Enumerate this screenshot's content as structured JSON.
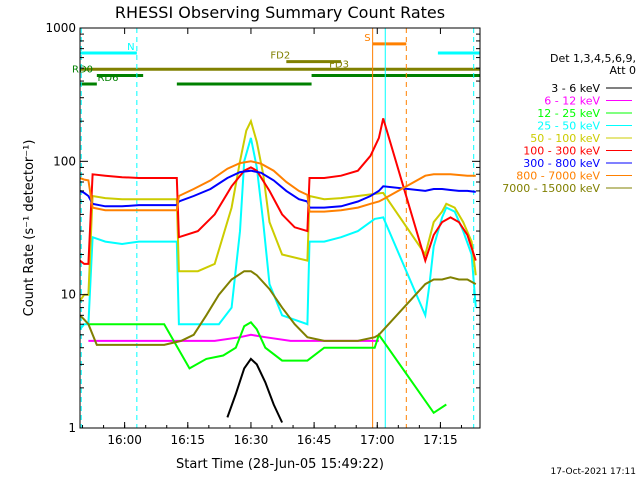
{
  "chart_data": {
    "type": "line",
    "title": "RHESSI Observing Summary Count Rates",
    "xlabel": "Start Time (28-Jun-05 15:49:22)",
    "ylabel": "Count Rate (s⁻¹ detector⁻¹)",
    "x_unit": "minutes after 15:49:22",
    "xlim": [
      0,
      95
    ],
    "ylim": [
      1,
      1000
    ],
    "yscale": "log",
    "x_ticks": [
      {
        "label": "16:00",
        "x": 10.6
      },
      {
        "label": "16:15",
        "x": 25.6
      },
      {
        "label": "16:30",
        "x": 40.6
      },
      {
        "label": "16:45",
        "x": 55.6
      },
      {
        "label": "17:00",
        "x": 70.6
      },
      {
        "label": "17:15",
        "x": 85.6
      }
    ],
    "y_ticks": [
      {
        "label": "1",
        "y": 1
      },
      {
        "label": "10",
        "y": 10
      },
      {
        "label": "100",
        "y": 100
      },
      {
        "label": "1000",
        "y": 1000
      }
    ],
    "legend": {
      "header": [
        "Det 1,3,4,5,6,9,",
        "Att 0"
      ],
      "placement": "right"
    },
    "series": [
      {
        "name": "3 - 6 keV",
        "color": "#000000",
        "points": [
          [
            35,
            1.2
          ],
          [
            37,
            1.8
          ],
          [
            39,
            2.8
          ],
          [
            40.6,
            3.3
          ],
          [
            42,
            3.0
          ],
          [
            44,
            2.2
          ],
          [
            46,
            1.5
          ],
          [
            48,
            1.1
          ]
        ]
      },
      {
        "name": "6 - 12 keV",
        "color": "#ff00ff",
        "points": [
          [
            2,
            4.5
          ],
          [
            10,
            4.5
          ],
          [
            18,
            4.5
          ],
          [
            26,
            4.5
          ],
          [
            32,
            4.5
          ],
          [
            38,
            4.8
          ],
          [
            40.6,
            5
          ],
          [
            44,
            4.8
          ],
          [
            50,
            4.5
          ],
          [
            58,
            4.5
          ],
          [
            66,
            4.5
          ],
          [
            71,
            4.5
          ]
        ]
      },
      {
        "name": "12 - 25 keV",
        "color": "#00ff00",
        "points": [
          [
            2,
            6
          ],
          [
            6,
            6
          ],
          [
            13,
            6
          ],
          [
            20,
            6
          ],
          [
            26,
            2.8
          ],
          [
            30,
            3.3
          ],
          [
            34,
            3.5
          ],
          [
            37,
            4
          ],
          [
            39,
            5.8
          ],
          [
            40.6,
            6.2
          ],
          [
            42,
            5.5
          ],
          [
            44,
            4
          ],
          [
            48,
            3.2
          ],
          [
            54,
            3.2
          ],
          [
            58,
            4
          ],
          [
            62,
            4
          ],
          [
            66,
            4
          ],
          [
            70,
            4
          ],
          [
            71,
            5
          ],
          [
            84,
            1.3
          ],
          [
            87,
            1.5
          ]
        ]
      },
      {
        "name": "25 - 50 keV",
        "color": "#00ffff",
        "points": [
          [
            0,
            5.5
          ],
          [
            1,
            6
          ],
          [
            2,
            6
          ],
          [
            3,
            27
          ],
          [
            6,
            25
          ],
          [
            10,
            24
          ],
          [
            14,
            25
          ],
          [
            18,
            25
          ],
          [
            23,
            25
          ],
          [
            23.5,
            6
          ],
          [
            28,
            6
          ],
          [
            33,
            6
          ],
          [
            36,
            8
          ],
          [
            38,
            30
          ],
          [
            39,
            100
          ],
          [
            40.6,
            150
          ],
          [
            42,
            90
          ],
          [
            43.5,
            35
          ],
          [
            45,
            12
          ],
          [
            48,
            7
          ],
          [
            54,
            6
          ],
          [
            54.5,
            25
          ],
          [
            58,
            25
          ],
          [
            62,
            27
          ],
          [
            66,
            30
          ],
          [
            70,
            37
          ],
          [
            72,
            38
          ],
          [
            82,
            7
          ],
          [
            83,
            12
          ],
          [
            84,
            23
          ],
          [
            86,
            38
          ],
          [
            87,
            45
          ],
          [
            89,
            42
          ],
          [
            91,
            30
          ],
          [
            93,
            20
          ],
          [
            94,
            8
          ]
        ]
      },
      {
        "name": "50 - 100 keV",
        "color": "#cccc00",
        "points": [
          [
            0,
            9
          ],
          [
            1,
            10
          ],
          [
            2,
            10
          ],
          [
            3,
            55
          ],
          [
            6,
            53
          ],
          [
            10,
            52
          ],
          [
            14,
            52
          ],
          [
            18,
            52
          ],
          [
            23,
            52
          ],
          [
            23.5,
            15
          ],
          [
            28,
            15
          ],
          [
            32,
            17
          ],
          [
            36,
            45
          ],
          [
            38,
            100
          ],
          [
            39.5,
            170
          ],
          [
            40.6,
            200
          ],
          [
            42,
            140
          ],
          [
            43.5,
            80
          ],
          [
            45,
            35
          ],
          [
            48,
            20
          ],
          [
            54,
            18
          ],
          [
            54.5,
            55
          ],
          [
            58,
            52
          ],
          [
            62,
            53
          ],
          [
            66,
            55
          ],
          [
            70,
            57
          ],
          [
            72,
            58
          ],
          [
            82,
            20
          ],
          [
            84,
            35
          ],
          [
            86,
            42
          ],
          [
            87,
            48
          ],
          [
            89,
            45
          ],
          [
            91,
            35
          ],
          [
            93,
            25
          ],
          [
            94,
            14
          ]
        ]
      },
      {
        "name": "100 - 300 keV",
        "color": "#ff0000",
        "points": [
          [
            0,
            18
          ],
          [
            1,
            17
          ],
          [
            2,
            17
          ],
          [
            3,
            80
          ],
          [
            6,
            78
          ],
          [
            10,
            76
          ],
          [
            14,
            75
          ],
          [
            18,
            75
          ],
          [
            23,
            75
          ],
          [
            23.5,
            27
          ],
          [
            28,
            30
          ],
          [
            32,
            40
          ],
          [
            36,
            65
          ],
          [
            39,
            85
          ],
          [
            40.6,
            90
          ],
          [
            42,
            85
          ],
          [
            45,
            60
          ],
          [
            48,
            40
          ],
          [
            51,
            32
          ],
          [
            54,
            30
          ],
          [
            54.5,
            75
          ],
          [
            58,
            75
          ],
          [
            62,
            78
          ],
          [
            66,
            85
          ],
          [
            69,
            110
          ],
          [
            71,
            150
          ],
          [
            72,
            210
          ],
          [
            82,
            18
          ],
          [
            84,
            28
          ],
          [
            86,
            35
          ],
          [
            88,
            38
          ],
          [
            90,
            35
          ],
          [
            92,
            28
          ],
          [
            94,
            18
          ]
        ]
      },
      {
        "name": "300 - 800 keV",
        "color": "#0000ff",
        "points": [
          [
            0,
            60
          ],
          [
            1,
            58
          ],
          [
            2,
            55
          ],
          [
            3,
            48
          ],
          [
            6,
            46
          ],
          [
            10,
            46
          ],
          [
            14,
            47
          ],
          [
            18,
            47
          ],
          [
            23,
            47
          ],
          [
            23.5,
            50
          ],
          [
            27,
            55
          ],
          [
            31,
            62
          ],
          [
            35,
            75
          ],
          [
            38,
            83
          ],
          [
            40.6,
            85
          ],
          [
            43,
            82
          ],
          [
            46,
            72
          ],
          [
            49,
            60
          ],
          [
            52,
            52
          ],
          [
            54,
            50
          ],
          [
            54.5,
            45
          ],
          [
            58,
            45
          ],
          [
            62,
            46
          ],
          [
            66,
            50
          ],
          [
            69,
            55
          ],
          [
            71,
            60
          ],
          [
            72,
            65
          ],
          [
            82,
            60
          ],
          [
            84,
            62
          ],
          [
            86,
            62
          ],
          [
            88,
            61
          ],
          [
            90,
            60
          ],
          [
            92,
            60
          ],
          [
            94,
            59
          ]
        ]
      },
      {
        "name": "800 - 7000 keV",
        "color": "#ff8000",
        "points": [
          [
            0,
            75
          ],
          [
            1,
            73
          ],
          [
            2,
            72
          ],
          [
            3,
            45
          ],
          [
            6,
            43
          ],
          [
            10,
            43
          ],
          [
            14,
            43
          ],
          [
            18,
            43
          ],
          [
            23,
            43
          ],
          [
            23.5,
            55
          ],
          [
            27,
            62
          ],
          [
            31,
            72
          ],
          [
            35,
            88
          ],
          [
            38,
            97
          ],
          [
            40.6,
            100
          ],
          [
            43,
            96
          ],
          [
            46,
            85
          ],
          [
            49,
            70
          ],
          [
            52,
            60
          ],
          [
            54,
            56
          ],
          [
            54.5,
            42
          ],
          [
            58,
            42
          ],
          [
            62,
            43
          ],
          [
            66,
            45
          ],
          [
            69,
            48
          ],
          [
            71,
            50
          ],
          [
            72,
            52
          ],
          [
            82,
            78
          ],
          [
            84,
            80
          ],
          [
            86,
            80
          ],
          [
            88,
            80
          ],
          [
            90,
            79
          ],
          [
            92,
            78
          ],
          [
            94,
            78
          ]
        ]
      },
      {
        "name": "7000 - 15000 keV",
        "color": "#808000",
        "points": [
          [
            0,
            7
          ],
          [
            1,
            6.5
          ],
          [
            2,
            6
          ],
          [
            4,
            4.2
          ],
          [
            8,
            4.2
          ],
          [
            14,
            4.2
          ],
          [
            20,
            4.2
          ],
          [
            24,
            4.5
          ],
          [
            27,
            5
          ],
          [
            30,
            7
          ],
          [
            33,
            10
          ],
          [
            36,
            13
          ],
          [
            39,
            15
          ],
          [
            40.6,
            15
          ],
          [
            42,
            14
          ],
          [
            45,
            11
          ],
          [
            48,
            8
          ],
          [
            51,
            6
          ],
          [
            54,
            4.8
          ],
          [
            58,
            4.5
          ],
          [
            62,
            4.5
          ],
          [
            66,
            4.5
          ],
          [
            70,
            4.8
          ],
          [
            71,
            5
          ],
          [
            82,
            12
          ],
          [
            84,
            13
          ],
          [
            86,
            13
          ],
          [
            88,
            13.5
          ],
          [
            90,
            13
          ],
          [
            92,
            13
          ],
          [
            94,
            12
          ]
        ]
      }
    ],
    "state_bars": [
      {
        "label": "N",
        "color": "#00ffff",
        "segments": [
          [
            0,
            13.5
          ],
          [
            85,
            95
          ]
        ],
        "level": 650
      },
      {
        "label": "S",
        "color": "#ff8000",
        "segments": [
          [
            69.5,
            77.5
          ]
        ],
        "level": 760
      },
      {
        "label": "FD2",
        "color": "#808000",
        "segments": [
          [
            49,
            62
          ]
        ],
        "level": 560
      },
      {
        "label": "FD3",
        "color": "#808000",
        "segments": [
          [
            0,
            95
          ]
        ],
        "level": 490
      },
      {
        "label": "RD0",
        "color": "#008000",
        "segments": [
          [
            4,
            15
          ],
          [
            55,
            95
          ]
        ],
        "level": 440
      },
      {
        "label": "RD6",
        "color": "#008000",
        "segments": [
          [
            0,
            4
          ],
          [
            23,
            55
          ]
        ],
        "level": 380
      }
    ],
    "verticals": [
      {
        "x": 13.5,
        "color": "#00ffff",
        "dash": true
      },
      {
        "x": 69.5,
        "color": "#ff8000",
        "dash": false
      },
      {
        "x": 72.5,
        "color": "#00ffff",
        "dash": false
      },
      {
        "x": 77.5,
        "color": "#ff8000",
        "dash": true
      },
      {
        "x": 93.5,
        "color": "#00ffff",
        "dash": true
      },
      {
        "x": 0.3,
        "color": "#00ffff",
        "dash": true
      }
    ],
    "grid": false
  },
  "footer": {
    "timestamp": "17-Oct-2021 17:11"
  }
}
